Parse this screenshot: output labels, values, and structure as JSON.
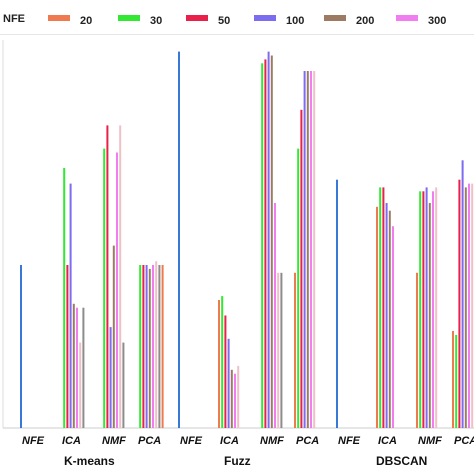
{
  "chart_data": {
    "type": "bar",
    "legend": {
      "title": "NFE",
      "entries": [
        {
          "label": "20",
          "color": "#f07a4f"
        },
        {
          "label": "30",
          "color": "#33e833"
        },
        {
          "label": "50",
          "color": "#e8204a"
        },
        {
          "label": "100",
          "color": "#7b6cf0"
        },
        {
          "label": "200",
          "color": "#9c7b62"
        },
        {
          "label": "300",
          "color": "#f07ef0"
        }
      ],
      "placement": "top"
    },
    "nfe_color": "#3a78d8",
    "other_colors": [
      "#f0c0c8",
      "#8c8c8c"
    ],
    "ylim": [
      0,
      100
    ],
    "grid": false,
    "groups": [
      {
        "name": "K-means",
        "categories": [
          {
            "label": "NFE",
            "values": [
              42
            ]
          },
          {
            "label": "ICA",
            "values": [
              0,
              67,
              42,
              63,
              32,
              31,
              22,
              31
            ]
          },
          {
            "label": "NMF",
            "values": [
              0,
              72,
              78,
              26,
              47,
              71,
              78,
              22
            ]
          },
          {
            "label": "PCA",
            "values": [
              0,
              42,
              42,
              42,
              41,
              42,
              43,
              42,
              42
            ]
          }
        ]
      },
      {
        "name": "Fuzz",
        "categories": [
          {
            "label": "NFE",
            "values": [
              97
            ]
          },
          {
            "label": "ICA",
            "values": [
              33,
              34,
              29,
              23,
              15,
              14,
              16
            ]
          },
          {
            "label": "NMF",
            "values": [
              0,
              94,
              95,
              97,
              96,
              58,
              40,
              40
            ]
          },
          {
            "label": "PCA",
            "values": [
              40,
              72,
              82,
              92,
              92,
              92,
              92
            ]
          }
        ]
      },
      {
        "name": "DBSCAN",
        "categories": [
          {
            "label": "NFE",
            "values": [
              64
            ]
          },
          {
            "label": "ICA",
            "values": [
              57,
              62,
              62,
              58,
              56,
              52
            ]
          },
          {
            "label": "NMF",
            "values": [
              40,
              61,
              61,
              62,
              58,
              61,
              62
            ]
          },
          {
            "label": "PCA",
            "values": [
              25,
              24,
              64,
              69,
              62,
              63,
              63
            ]
          }
        ]
      }
    ]
  }
}
